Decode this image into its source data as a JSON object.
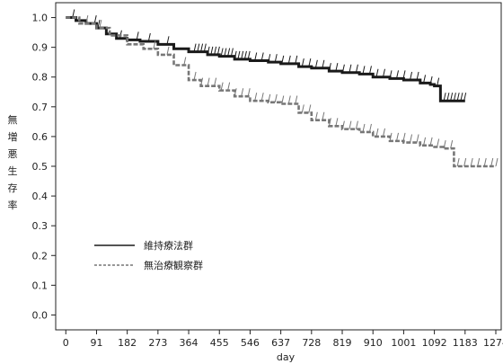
{
  "chart_data": {
    "type": "line",
    "title": "",
    "xlabel": "day",
    "ylabel": "無増悪生存率",
    "xlim": [
      -30,
      1290
    ],
    "ylim": [
      -0.05,
      1.05
    ],
    "x_ticks": [
      0,
      91,
      182,
      273,
      364,
      455,
      546,
      637,
      728,
      819,
      910,
      1001,
      1092,
      1183,
      1274
    ],
    "y_ticks": [
      0.0,
      0.1,
      0.2,
      0.3,
      0.4,
      0.5,
      0.6,
      0.7,
      0.8,
      0.9,
      1.0
    ],
    "y_tick_labels": [
      "0.0",
      "0.1",
      "0.2",
      "0.3",
      "0.4",
      "0.5",
      "0.6",
      "0.7",
      "0.8",
      "0.9",
      "1.0"
    ],
    "grid": false,
    "legend_position": "bottom-left",
    "series": [
      {
        "name": "維持療法群",
        "style": "solid",
        "color": "#1a1a1a",
        "x": [
          0,
          30,
          60,
          91,
          120,
          150,
          182,
          220,
          273,
          320,
          364,
          420,
          455,
          500,
          546,
          600,
          637,
          690,
          728,
          780,
          819,
          870,
          910,
          960,
          1001,
          1050,
          1080,
          1092,
          1100,
          1110,
          1150,
          1170,
          1183
        ],
        "y": [
          1.0,
          0.99,
          0.98,
          0.965,
          0.945,
          0.93,
          0.925,
          0.92,
          0.91,
          0.895,
          0.885,
          0.875,
          0.87,
          0.86,
          0.855,
          0.85,
          0.845,
          0.835,
          0.83,
          0.82,
          0.815,
          0.81,
          0.8,
          0.795,
          0.79,
          0.78,
          0.775,
          0.77,
          0.77,
          0.72,
          0.72,
          0.72,
          0.72
        ],
        "censor_x": [
          20,
          85,
          95,
          160,
          210,
          245,
          300,
          380,
          390,
          400,
          410,
          420,
          430,
          440,
          450,
          460,
          470,
          480,
          490,
          500,
          510,
          520,
          530,
          540,
          560,
          580,
          600,
          620,
          640,
          660,
          680,
          700,
          720,
          740,
          760,
          780,
          800,
          820,
          840,
          860,
          880,
          900,
          920,
          940,
          960,
          980,
          1000,
          1020,
          1040,
          1060,
          1080,
          1100,
          1120,
          1130,
          1140,
          1150,
          1160,
          1170,
          1180
        ]
      },
      {
        "name": "無治療観察群",
        "style": "dashed",
        "color": "#777777",
        "x": [
          0,
          40,
          91,
          130,
          182,
          230,
          273,
          320,
          364,
          400,
          455,
          500,
          546,
          600,
          637,
          690,
          728,
          780,
          819,
          870,
          910,
          960,
          1001,
          1050,
          1092,
          1120,
          1150,
          1180,
          1200,
          1274
        ],
        "y": [
          1.0,
          0.98,
          0.965,
          0.94,
          0.91,
          0.895,
          0.875,
          0.84,
          0.79,
          0.77,
          0.755,
          0.735,
          0.72,
          0.715,
          0.71,
          0.68,
          0.655,
          0.635,
          0.625,
          0.615,
          0.6,
          0.585,
          0.58,
          0.57,
          0.565,
          0.56,
          0.5,
          0.5,
          0.5,
          0.5
        ],
        "censor_x": [
          60,
          100,
          260,
          300,
          350,
          380,
          400,
          420,
          440,
          460,
          480,
          500,
          520,
          540,
          560,
          580,
          600,
          620,
          640,
          660,
          680,
          700,
          720,
          740,
          760,
          780,
          800,
          820,
          840,
          860,
          880,
          900,
          920,
          940,
          960,
          980,
          1000,
          1020,
          1040,
          1060,
          1080,
          1100,
          1120,
          1140,
          1160,
          1180,
          1200,
          1220,
          1240,
          1260,
          1274
        ]
      }
    ]
  }
}
